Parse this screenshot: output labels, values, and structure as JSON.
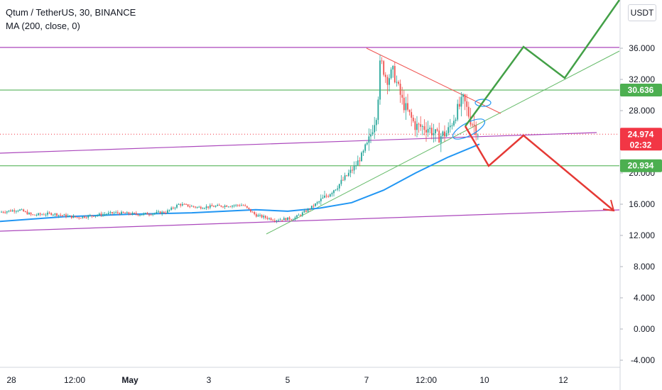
{
  "header": {
    "title": "Qtum / TetherUS, 30, BINANCE",
    "indicator": "MA (200, close, 0)"
  },
  "currency_label": "USDT",
  "chart_data": {
    "type": "line",
    "symbol": "QTUM/USDT",
    "exchange": "BINANCE",
    "interval": "30",
    "ylim": [
      -5.5,
      40.5
    ],
    "y_ticks": [
      "36.000",
      "32.000",
      "28.000",
      "24.000",
      "20.000",
      "16.000",
      "12.000",
      "8.000",
      "4.000",
      "0.000",
      "-4.000"
    ],
    "x_ticks": [
      "28",
      "12:00",
      "May",
      "3",
      "5",
      "7",
      "12:00",
      "10",
      "12"
    ],
    "price_tags": [
      {
        "label": "30.636",
        "value": 30.636,
        "color": "#4caf50"
      },
      {
        "label": "24.974",
        "value": 24.974,
        "color": "#f23645",
        "countdown": "02:32"
      },
      {
        "label": "20.934",
        "value": 20.934,
        "color": "#4caf50"
      }
    ],
    "horizontal_levels": [
      {
        "value": 36.1,
        "color": "#ab47bc"
      },
      {
        "value": 30.636,
        "color": "#66bb6a"
      },
      {
        "value": 20.934,
        "color": "#66bb6a"
      }
    ],
    "current_price": 24.974,
    "series": [
      {
        "name": "price",
        "type": "candles",
        "color_up": "#26a69a",
        "color_down": "#ef5350",
        "approx_path": [
          [
            0,
            15.0
          ],
          [
            0.03,
            15.3
          ],
          [
            0.05,
            14.6
          ],
          [
            0.08,
            14.8
          ],
          [
            0.12,
            14.3
          ],
          [
            0.15,
            14.6
          ],
          [
            0.18,
            14.9
          ],
          [
            0.22,
            14.7
          ],
          [
            0.26,
            15.0
          ],
          [
            0.28,
            16.0
          ],
          [
            0.31,
            15.6
          ],
          [
            0.35,
            15.8
          ],
          [
            0.38,
            15.9
          ],
          [
            0.4,
            14.6
          ],
          [
            0.43,
            14.0
          ],
          [
            0.46,
            14.2
          ],
          [
            0.48,
            15.2
          ],
          [
            0.51,
            17.0
          ],
          [
            0.53,
            18.5
          ],
          [
            0.555,
            20.8
          ],
          [
            0.575,
            23.5
          ],
          [
            0.59,
            28.0
          ],
          [
            0.595,
            34.5
          ],
          [
            0.605,
            32.0
          ],
          [
            0.615,
            33.0
          ],
          [
            0.63,
            29.0
          ],
          [
            0.65,
            26.0
          ],
          [
            0.67,
            25.8
          ],
          [
            0.685,
            24.6
          ],
          [
            0.7,
            25.2
          ],
          [
            0.715,
            28.0
          ],
          [
            0.725,
            29.5
          ],
          [
            0.735,
            27.0
          ],
          [
            0.745,
            25.6
          ],
          [
            0.75,
            25.0
          ]
        ]
      },
      {
        "name": "MA (200, close, 0)",
        "type": "line",
        "color": "#2196f3",
        "approx_path": [
          [
            0,
            13.8
          ],
          [
            0.1,
            14.4
          ],
          [
            0.2,
            14.7
          ],
          [
            0.3,
            14.9
          ],
          [
            0.4,
            15.3
          ],
          [
            0.45,
            15.1
          ],
          [
            0.5,
            15.5
          ],
          [
            0.55,
            16.2
          ],
          [
            0.6,
            17.8
          ],
          [
            0.65,
            20.0
          ],
          [
            0.7,
            22.0
          ],
          [
            0.75,
            23.7
          ]
        ]
      }
    ],
    "annotations": [
      {
        "type": "trendline",
        "name": "lower-purple-channel",
        "color": "#ab47bc"
      },
      {
        "type": "trendline",
        "name": "upper-purple-channel",
        "color": "#ab47bc"
      },
      {
        "type": "trendline",
        "name": "green-support",
        "color": "#66bb6a"
      },
      {
        "type": "trendline",
        "name": "red-resistance",
        "color": "#ef5350"
      },
      {
        "type": "arrow-path",
        "name": "bullish-scenario",
        "color": "#43a047"
      },
      {
        "type": "arrow-path",
        "name": "bearish-scenario",
        "color": "#e53935"
      },
      {
        "type": "ellipse",
        "name": "blue-ellipse-upper",
        "color": "#2196f3"
      },
      {
        "type": "ellipse",
        "name": "blue-ellipse-lower",
        "color": "#2196f3"
      }
    ]
  }
}
